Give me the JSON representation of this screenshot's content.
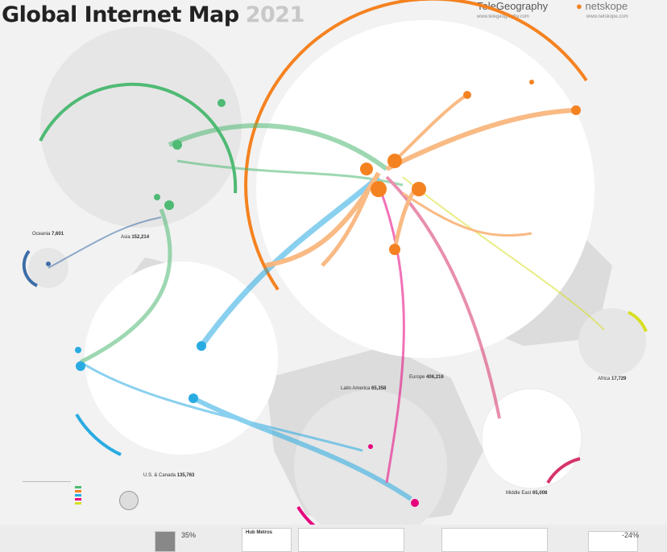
{
  "header": {
    "title": "Global Internet Map",
    "year": "2021",
    "brand_left": "TeleGeography",
    "brand_right": "netskope",
    "brand_left_url": "www.telegeography.com",
    "brand_right_url": "www.netskope.com"
  },
  "regions": [
    {
      "id": "asia",
      "label": "Asia",
      "value": "152,214",
      "color": "#4fba74"
    },
    {
      "id": "europe",
      "label": "Europe",
      "value": "406,216",
      "color": "#f58220"
    },
    {
      "id": "oceania",
      "label": "Oceania",
      "value": "7,601",
      "color": "#3e6ea8"
    },
    {
      "id": "us-canada",
      "label": "U.S. & Canada",
      "value": "135,763",
      "color": "#29abe2"
    },
    {
      "id": "latin-america",
      "label": "Latin America",
      "value": "65,358",
      "color": "#e6007e"
    },
    {
      "id": "africa",
      "label": "Africa",
      "value": "17,729",
      "color": "#d7df23"
    },
    {
      "id": "middle-east",
      "label": "Middle East",
      "value": "65,008",
      "color": "#d6336c"
    }
  ],
  "footer": {
    "left_percent": "35%",
    "right_percent": "-24%",
    "center_title": "Hub Metros"
  }
}
